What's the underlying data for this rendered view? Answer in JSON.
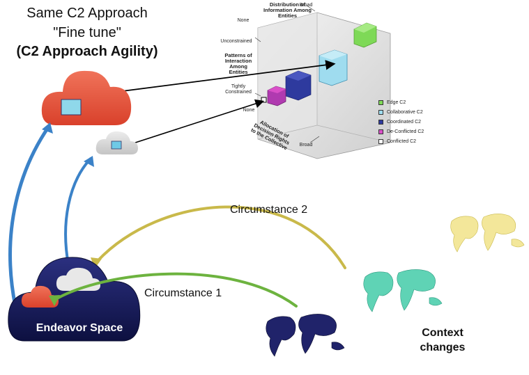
{
  "title": {
    "line1": "Same C2 Approach",
    "line2": "\"Fine tune\"",
    "line3": "(C2 Approach Agility)"
  },
  "labels": {
    "circumstance2": "Circumstance 2",
    "circumstance1": "Circumstance 1",
    "endeavor_space": "Endeavor Space",
    "context_line1": "Context",
    "context_line2": "changes"
  },
  "cube": {
    "axis_distribution": "Distribution of Information Among Entities",
    "axis_patterns": "Patterns of Interaction Among Entities",
    "axis_allocation": "Allocation of Decision Rights to the Collective",
    "tick_none_top": "None",
    "tick_broad_top": "Broad",
    "tick_unconstrained": "Unconstrained",
    "tick_tightly": "Tightly Constrained",
    "tick_none_bottom": "None",
    "tick_broad_bottom": "Broad"
  },
  "legend": [
    {
      "label": "Edge C2",
      "color": "#7ed957"
    },
    {
      "label": "Collaborative C2",
      "color": "#9fdcef"
    },
    {
      "label": "Coordinated C2",
      "color": "#2e3a9e"
    },
    {
      "label": "De-Conflicted C2",
      "color": "#d94fc8"
    },
    {
      "label": "Conflicted C2",
      "color": "#ffffff"
    }
  ],
  "colors": {
    "red_cloud": "#e4513a",
    "grey_cloud": "#d7d7d7",
    "navy_cloud": "#1b1f5c",
    "blue_arrow": "#3b82c8",
    "yellow_arrow": "#c9b94a",
    "green_arrow": "#6db33f",
    "map_yellow": "#f3e79a",
    "map_teal": "#5fd3b5",
    "map_navy": "#20236a"
  }
}
